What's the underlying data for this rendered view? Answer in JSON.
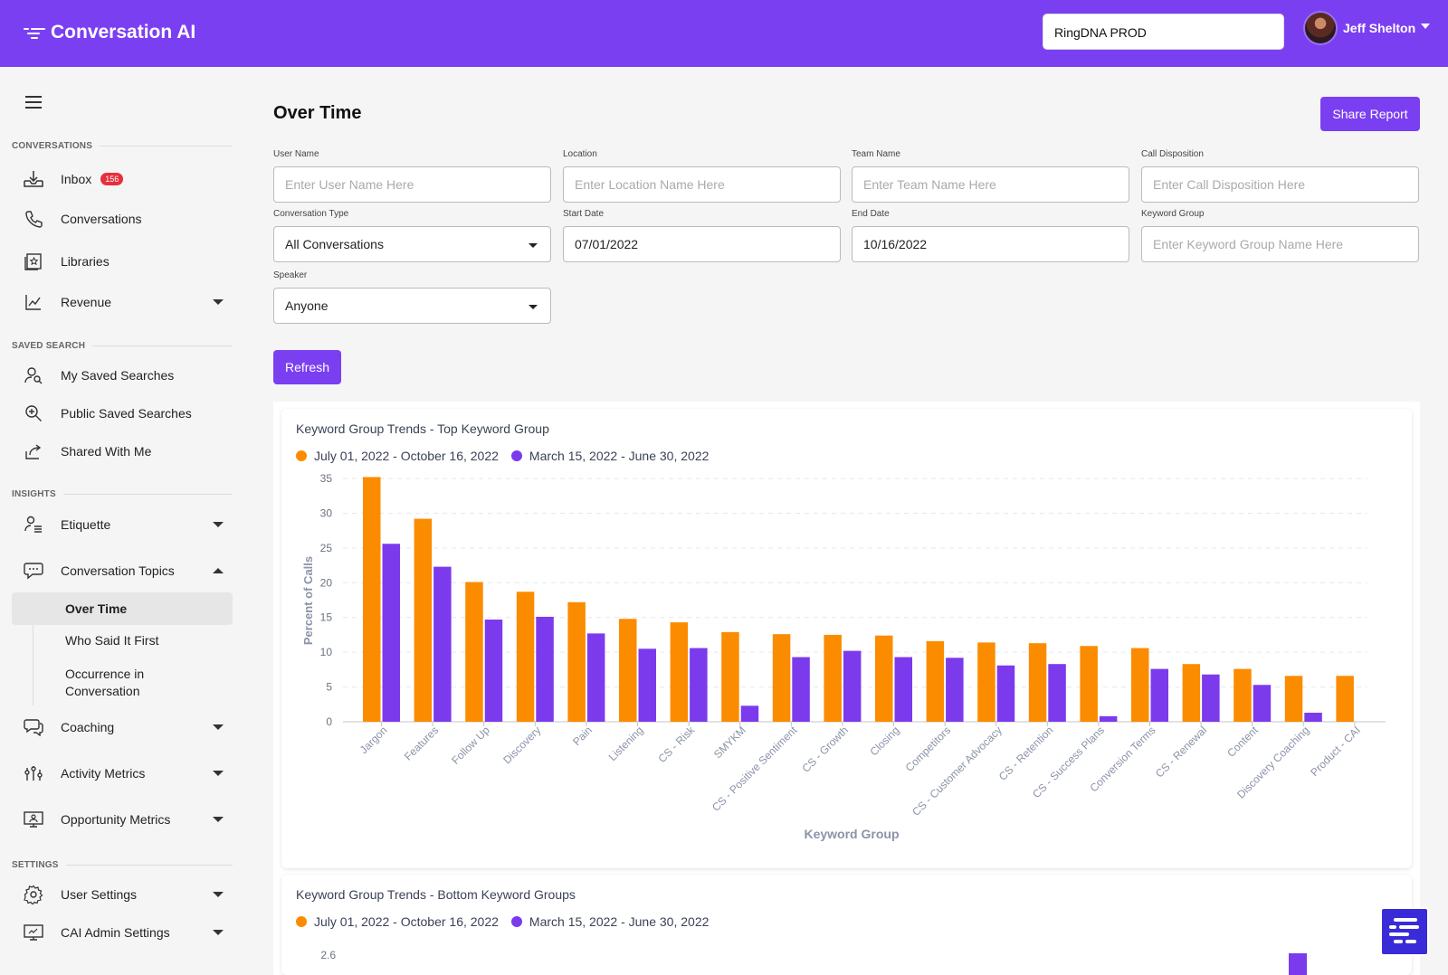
{
  "header": {
    "app_title": "Conversation AI",
    "org_value": "RingDNA PROD",
    "user_name": "Jeff Shelton"
  },
  "sidebar": {
    "sections": {
      "conversations": "CONVERSATIONS",
      "saved_search": "SAVED SEARCH",
      "insights": "INSIGHTS",
      "settings": "SETTINGS"
    },
    "items": {
      "inbox": "Inbox",
      "inbox_count": "156",
      "conversations": "Conversations",
      "libraries": "Libraries",
      "revenue": "Revenue",
      "my_saved_searches": "My Saved Searches",
      "public_saved_searches": "Public Saved Searches",
      "shared_with_me": "Shared With Me",
      "etiquette": "Etiquette",
      "conversation_topics": "Conversation Topics",
      "over_time": "Over Time",
      "who_said_it_first": "Who Said It First",
      "occurrence_line1": "Occurrence in",
      "occurrence_line2": "Conversation",
      "coaching": "Coaching",
      "activity_metrics": "Activity Metrics",
      "opportunity_metrics": "Opportunity Metrics",
      "user_settings": "User Settings",
      "cai_admin_settings": "CAI Admin Settings"
    }
  },
  "main": {
    "title": "Over Time",
    "share_label": "Share Report",
    "refresh_label": "Refresh",
    "filters": {
      "user_name_label": "User Name",
      "user_name_placeholder": "Enter User Name Here",
      "location_label": "Location",
      "location_placeholder": "Enter Location Name Here",
      "team_label": "Team Name",
      "team_placeholder": "Enter Team Name Here",
      "disposition_label": "Call Disposition",
      "disposition_placeholder": "Enter Call Disposition Here",
      "conv_type_label": "Conversation Type",
      "conv_type_value": "All Conversations",
      "start_label": "Start Date",
      "start_value": "07/01/2022",
      "end_label": "End Date",
      "end_value": "10/16/2022",
      "kw_group_label": "Keyword Group",
      "kw_group_placeholder": "Enter Keyword Group Name Here",
      "speaker_label": "Speaker",
      "speaker_value": "Anyone"
    }
  },
  "colors": {
    "brand": "#7b3ff2",
    "series_current": "#fb8c00",
    "series_previous": "#7c3aed"
  },
  "chart_data": [
    {
      "type": "bar",
      "title": "Keyword Group Trends - Top Keyword Group",
      "xlabel": "Keyword Group",
      "ylabel": "Percent of Calls",
      "ylim": [
        0,
        35
      ],
      "yticks": [
        0,
        5,
        10,
        15,
        20,
        25,
        30,
        35
      ],
      "grid": true,
      "legend_position": "top-left",
      "categories": [
        "Jargon",
        "Features",
        "Follow Up",
        "Discovery",
        "Pain",
        "Listening",
        "CS - Risk",
        "SMYKM",
        "CS - Positive Sentiment",
        "CS - Growth",
        "Closing",
        "Competitors",
        "CS - Customer Advocacy",
        "CS - Retention",
        "CS - Success Plans",
        "Conversion Terms",
        "CS - Renewal",
        "Content",
        "Discovery Coaching",
        "Product - CAI"
      ],
      "series": [
        {
          "name": "July 01, 2022 - October 16, 2022",
          "values": [
            35.2,
            29.2,
            20.1,
            18.7,
            17.2,
            14.8,
            14.3,
            12.9,
            12.6,
            12.5,
            12.4,
            11.6,
            11.4,
            11.3,
            10.9,
            10.6,
            8.3,
            7.6,
            6.6,
            6.6
          ]
        },
        {
          "name": "March 15, 2022 - June 30, 2022",
          "values": [
            25.6,
            22.3,
            14.7,
            15.1,
            12.7,
            10.5,
            10.6,
            2.3,
            9.3,
            10.2,
            9.3,
            9.2,
            8.1,
            8.3,
            0.8,
            7.6,
            6.8,
            5.3,
            1.3,
            0
          ]
        }
      ]
    },
    {
      "type": "bar",
      "title": "Keyword Group Trends - Bottom Keyword Groups",
      "legend_position": "top-left",
      "yticks": [
        2.6
      ],
      "series": [
        {
          "name": "July 01, 2022 - October 16, 2022",
          "values": []
        },
        {
          "name": "March 15, 2022 - June 30, 2022",
          "values": []
        }
      ]
    }
  ]
}
